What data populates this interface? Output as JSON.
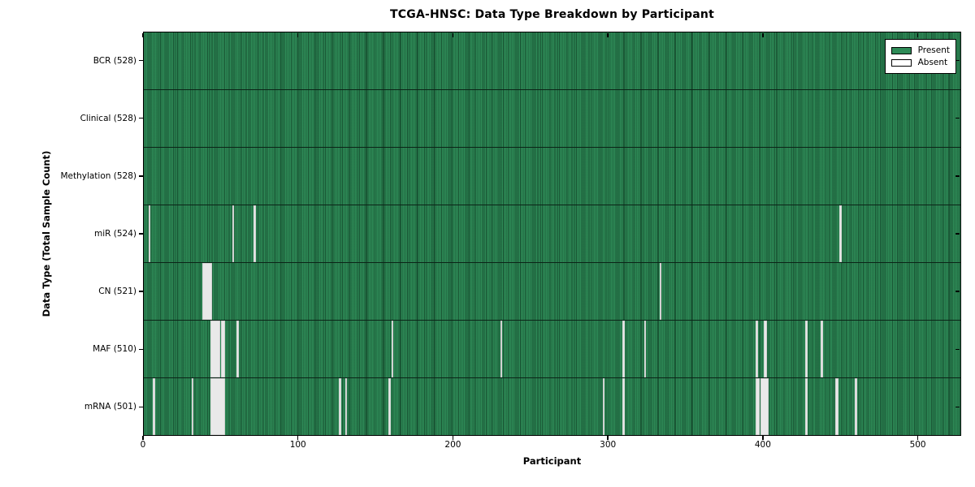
{
  "chart_data": {
    "type": "heatmap",
    "title": "TCGA-HNSC: Data Type Breakdown by Participant",
    "xlabel": "Participant",
    "ylabel": "Data Type (Total Sample Count)",
    "xlim": [
      0,
      528
    ],
    "x_ticks": [
      0,
      100,
      200,
      300,
      400,
      500
    ],
    "grid": false,
    "legend_position": "upper right",
    "legend": [
      {
        "label": "Present",
        "color": "#2e8b57"
      },
      {
        "label": "Absent",
        "color": "#ffffff"
      }
    ],
    "colors": {
      "present": "#2e8b57",
      "absent_stripe": "#e9e9e9",
      "bar_edge": "#0b2417",
      "axis": "#000000"
    },
    "rows": [
      {
        "label": "BCR (528)",
        "total": 528,
        "absent_participants": []
      },
      {
        "label": "Clinical (528)",
        "total": 528,
        "absent_participants": []
      },
      {
        "label": "Methylation (528)",
        "total": 528,
        "absent_participants": []
      },
      {
        "label": "miR (524)",
        "total": 524,
        "absent_participants": [
          3,
          57,
          71,
          449
        ]
      },
      {
        "label": "CN (521)",
        "total": 521,
        "absent_participants": [
          38,
          39,
          40,
          41,
          42,
          43,
          333
        ]
      },
      {
        "label": "MAF (510)",
        "total": 510,
        "absent_participants": [
          43,
          44,
          45,
          46,
          47,
          48,
          50,
          51,
          60,
          160,
          230,
          309,
          323,
          395,
          400,
          401,
          427,
          437
        ]
      },
      {
        "label": "mRNA (501)",
        "total": 501,
        "absent_participants": [
          6,
          31,
          43,
          44,
          45,
          46,
          47,
          48,
          49,
          50,
          51,
          126,
          130,
          158,
          296,
          309,
          395,
          396,
          398,
          399,
          400,
          401,
          402,
          427,
          446,
          447,
          459
        ]
      }
    ]
  }
}
